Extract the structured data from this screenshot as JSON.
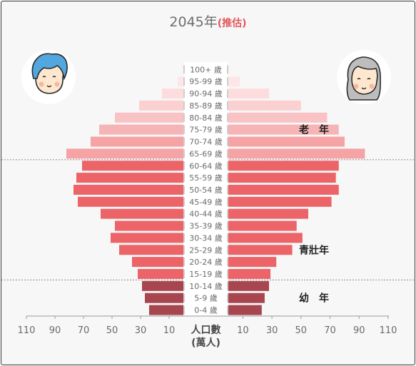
{
  "header": {
    "year": "2045年",
    "note": "(推估)"
  },
  "chart_data": {
    "type": "bar",
    "subtype": "population-pyramid",
    "title": "2045年(推估)",
    "categories": [
      "0-4 歲",
      "5-9 歲",
      "10-14 歲",
      "15-19 歲",
      "20-24 歲",
      "25-29 歲",
      "30-34 歲",
      "35-39 歲",
      "40-44 歲",
      "45-49 歲",
      "50-54 歲",
      "55-59 歲",
      "60-64 歲",
      "65-69 歲",
      "70-74 歲",
      "75-79 歲",
      "80-84 歲",
      "85-89 歲",
      "90-94 歲",
      "95-99 歲",
      "100+ 歲"
    ],
    "series": [
      {
        "side": "left",
        "avatar": "male-avatar-icon",
        "values": [
          24,
          27,
          29,
          32,
          36,
          45,
          51,
          48,
          58,
          74,
          77,
          75,
          71,
          82,
          65,
          59,
          48,
          31,
          15,
          4,
          1
        ]
      },
      {
        "side": "right",
        "avatar": "female-avatar-icon",
        "values": [
          23,
          25,
          28,
          29,
          33,
          44,
          51,
          47,
          55,
          71,
          76,
          74,
          76,
          94,
          80,
          76,
          68,
          50,
          28,
          8,
          1
        ]
      }
    ],
    "xlim": [
      0,
      110
    ],
    "xticks": [
      10,
      30,
      50,
      70,
      90,
      110
    ],
    "xlabel": "人口數",
    "xlabel_unit": "(萬人)",
    "groups": [
      {
        "label": "幼　年",
        "from": 0,
        "to": 2,
        "color": "#a84650"
      },
      {
        "label": "青壯年",
        "from": 3,
        "to": 12,
        "color": "#ec6468"
      },
      {
        "label": "老　年",
        "from": 13,
        "to": 20
      }
    ],
    "old_age_shades": [
      "#f5a3a5",
      "#f5a3a5",
      "#f7b4b6",
      "#f9c3c5",
      "#fbd0d1",
      "#fcdcdd",
      "#fde6e7",
      "#fdf1f1"
    ],
    "group_dividers": true
  }
}
